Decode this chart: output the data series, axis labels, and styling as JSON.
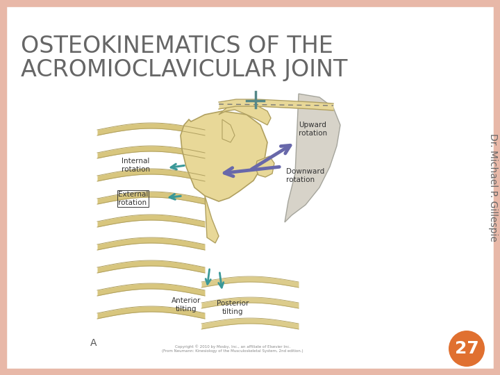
{
  "title_line1": "OSTEOKINEMATICS OF THE",
  "title_line2": "ACROMIOCLAVICULAR JOINT",
  "title_color": "#666666",
  "title_fontsize": 24,
  "bg_color": "#ffffff",
  "border_color": "#e8b8a8",
  "border_lw": 14,
  "slide_number": "27",
  "slide_number_bg": "#e07030",
  "slide_number_color": "#ffffff",
  "slide_number_fontsize": 18,
  "vertical_text": "Dr. Michael P. Gillespie",
  "vertical_text_color": "#666666",
  "vertical_text_fontsize": 10,
  "bone_fill": "#e8d898",
  "bone_edge": "#b0a060",
  "rib_color": "#d4c070",
  "arm_fill": "#ccccbb",
  "arm_edge": "#999988",
  "teal_arrow": "#3a9898",
  "purple_arrow": "#6868aa",
  "label_color": "#333333",
  "label_fontsize": 7.5
}
